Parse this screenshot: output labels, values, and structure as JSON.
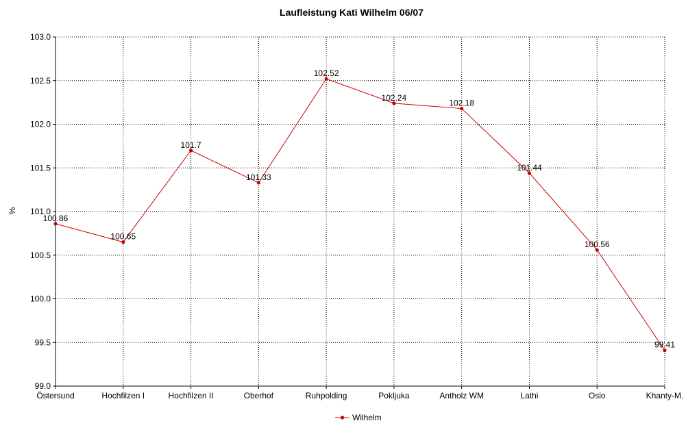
{
  "chart_data": {
    "type": "line",
    "title": "Laufleistung Kati Wilhelm 06/07",
    "xlabel": "",
    "ylabel": "%",
    "categories": [
      "Östersund",
      "Hochfilzen I",
      "Hochfilzen II",
      "Oberhof",
      "Ruhpolding",
      "Pokljuka",
      "Antholz WM",
      "Lathi",
      "Oslo",
      "Khanty-M."
    ],
    "series": [
      {
        "name": "Wilhelm",
        "values": [
          100.86,
          100.65,
          101.7,
          101.33,
          102.52,
          102.24,
          102.18,
          101.44,
          100.56,
          99.41
        ],
        "labels": [
          "100.86",
          "100.65",
          "101.7",
          "101.33",
          "102.52",
          "102.24",
          "102.18",
          "101.44",
          "100.56",
          "99.41"
        ],
        "color": "#cc0000"
      }
    ],
    "ylim": [
      99.0,
      103.0
    ],
    "yticks": [
      "99.0",
      "99.5",
      "100.0",
      "100.5",
      "101.0",
      "101.5",
      "102.0",
      "102.5",
      "103.0"
    ],
    "grid": true,
    "legend_position": "bottom-center"
  }
}
